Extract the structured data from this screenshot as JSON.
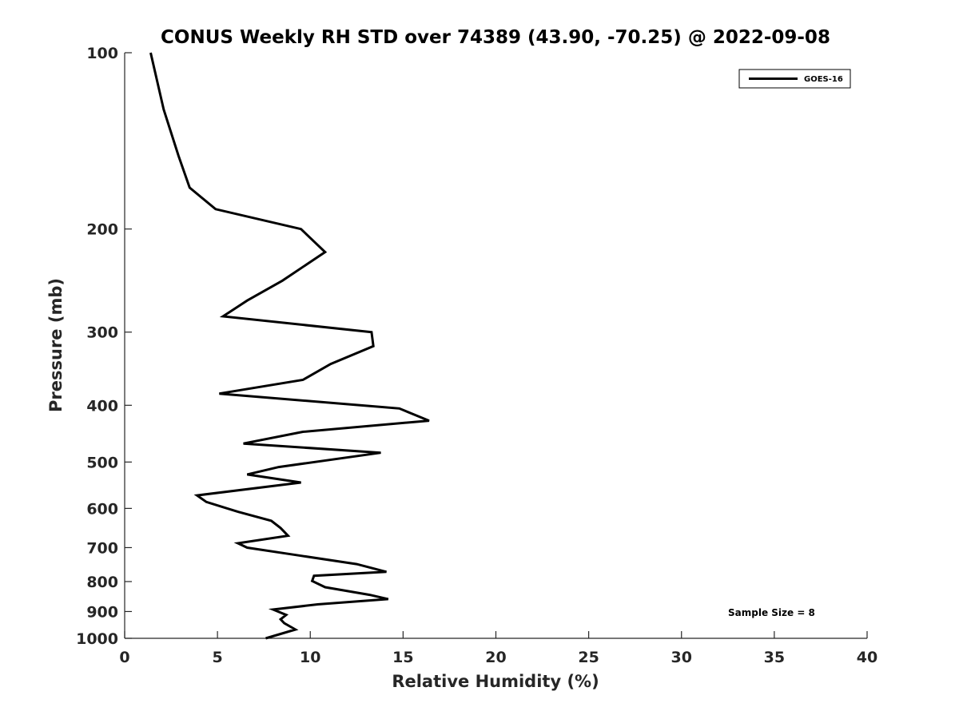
{
  "chart_data": {
    "type": "line",
    "title": "CONUS Weekly RH STD over 74389 (43.90, -70.25) @ 2022-09-08",
    "xlabel": "Relative Humidity (%)",
    "ylabel": "Pressure (mb)",
    "xlim": [
      0,
      40
    ],
    "ylim": [
      100,
      1000
    ],
    "y_scale": "log",
    "y_reversed": true,
    "grid": false,
    "legend_position": "top-right",
    "x_ticks": [
      "0",
      "5",
      "10",
      "15",
      "20",
      "25",
      "30",
      "35",
      "40"
    ],
    "y_ticks": [
      "100",
      "200",
      "300",
      "400",
      "500",
      "600",
      "700",
      "800",
      "900",
      "1000"
    ],
    "annotation": "Sample Size = 8",
    "series": [
      {
        "name": "GOES-16",
        "color": "#000000",
        "points": [
          [
            1.4,
            100
          ],
          [
            2.1,
            125
          ],
          [
            2.9,
            150
          ],
          [
            3.5,
            170
          ],
          [
            4.9,
            185
          ],
          [
            9.5,
            200
          ],
          [
            10.8,
            219
          ],
          [
            8.5,
            245
          ],
          [
            6.6,
            265
          ],
          [
            5.3,
            282
          ],
          [
            13.3,
            300
          ],
          [
            13.4,
            317
          ],
          [
            11.1,
            340
          ],
          [
            9.6,
            362
          ],
          [
            5.1,
            382
          ],
          [
            14.8,
            405
          ],
          [
            16.4,
            425
          ],
          [
            9.6,
            444
          ],
          [
            6.4,
            465
          ],
          [
            13.8,
            482
          ],
          [
            8.3,
            510
          ],
          [
            6.6,
            525
          ],
          [
            9.5,
            542
          ],
          [
            3.9,
            570
          ],
          [
            4.4,
            585
          ],
          [
            6.1,
            608
          ],
          [
            7.9,
            630
          ],
          [
            8.4,
            648
          ],
          [
            8.8,
            668
          ],
          [
            6.1,
            688
          ],
          [
            6.6,
            700
          ],
          [
            9.4,
            722
          ],
          [
            12.5,
            747
          ],
          [
            14.1,
            770
          ],
          [
            10.2,
            782
          ],
          [
            10.1,
            798
          ],
          [
            10.8,
            818
          ],
          [
            13.2,
            843
          ],
          [
            14.2,
            857
          ],
          [
            10.4,
            875
          ],
          [
            8.0,
            893
          ],
          [
            8.7,
            912
          ],
          [
            8.4,
            928
          ],
          [
            8.6,
            942
          ],
          [
            9.2,
            966
          ],
          [
            7.6,
            1000
          ]
        ]
      }
    ]
  }
}
